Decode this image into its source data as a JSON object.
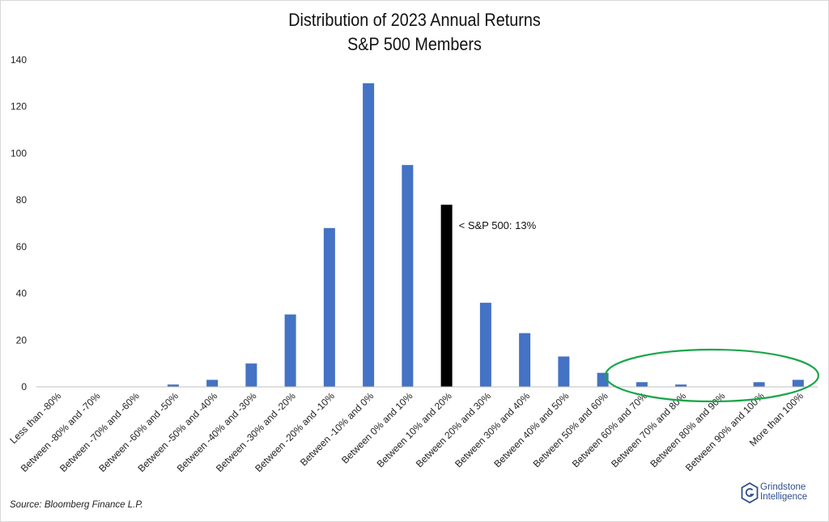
{
  "chart_data": {
    "type": "bar",
    "title": "Distribution of 2023 Annual Returns",
    "subtitle": "S&P 500 Members",
    "categories": [
      "Less than -80%",
      "Between -80% and -70%",
      "Between -70% and -60%",
      "Between -60% and -50%",
      "Between -50% and -40%",
      "Between -40% and -30%",
      "Between -30% and -20%",
      "Between -20% and -10%",
      "Between -10% and 0%",
      "Between 0% and 10%",
      "Between 10% and 20%",
      "Between 20% and 30%",
      "Between 30% and 40%",
      "Between 40% and 50%",
      "Between 50% and 60%",
      "Between 60% and 70%",
      "Between 70% and 80%",
      "Between 80% and 90%",
      "Between 90% and 100%",
      "More than 100%"
    ],
    "values": [
      0,
      0,
      0,
      1,
      3,
      10,
      31,
      68,
      130,
      95,
      78,
      36,
      23,
      13,
      6,
      2,
      1,
      0,
      2,
      3
    ],
    "highlight_index": 10,
    "highlight_annotation": "< S&P 500: 13%",
    "ylim": [
      0,
      140
    ],
    "yticks": [
      0,
      20,
      40,
      60,
      80,
      100,
      120,
      140
    ],
    "grid": false,
    "legend": "none",
    "colors": {
      "bar": "#4472c4",
      "highlight": "#000000",
      "circle": "#1aa64a"
    },
    "circled_categories": "Between 60% and 70% to More than 100%"
  },
  "source": "Source: Bloomberg Finance L.P.",
  "logo": {
    "line1": "Grindstone",
    "line2": "Intelligence",
    "icon": "hexagon-g-icon"
  }
}
